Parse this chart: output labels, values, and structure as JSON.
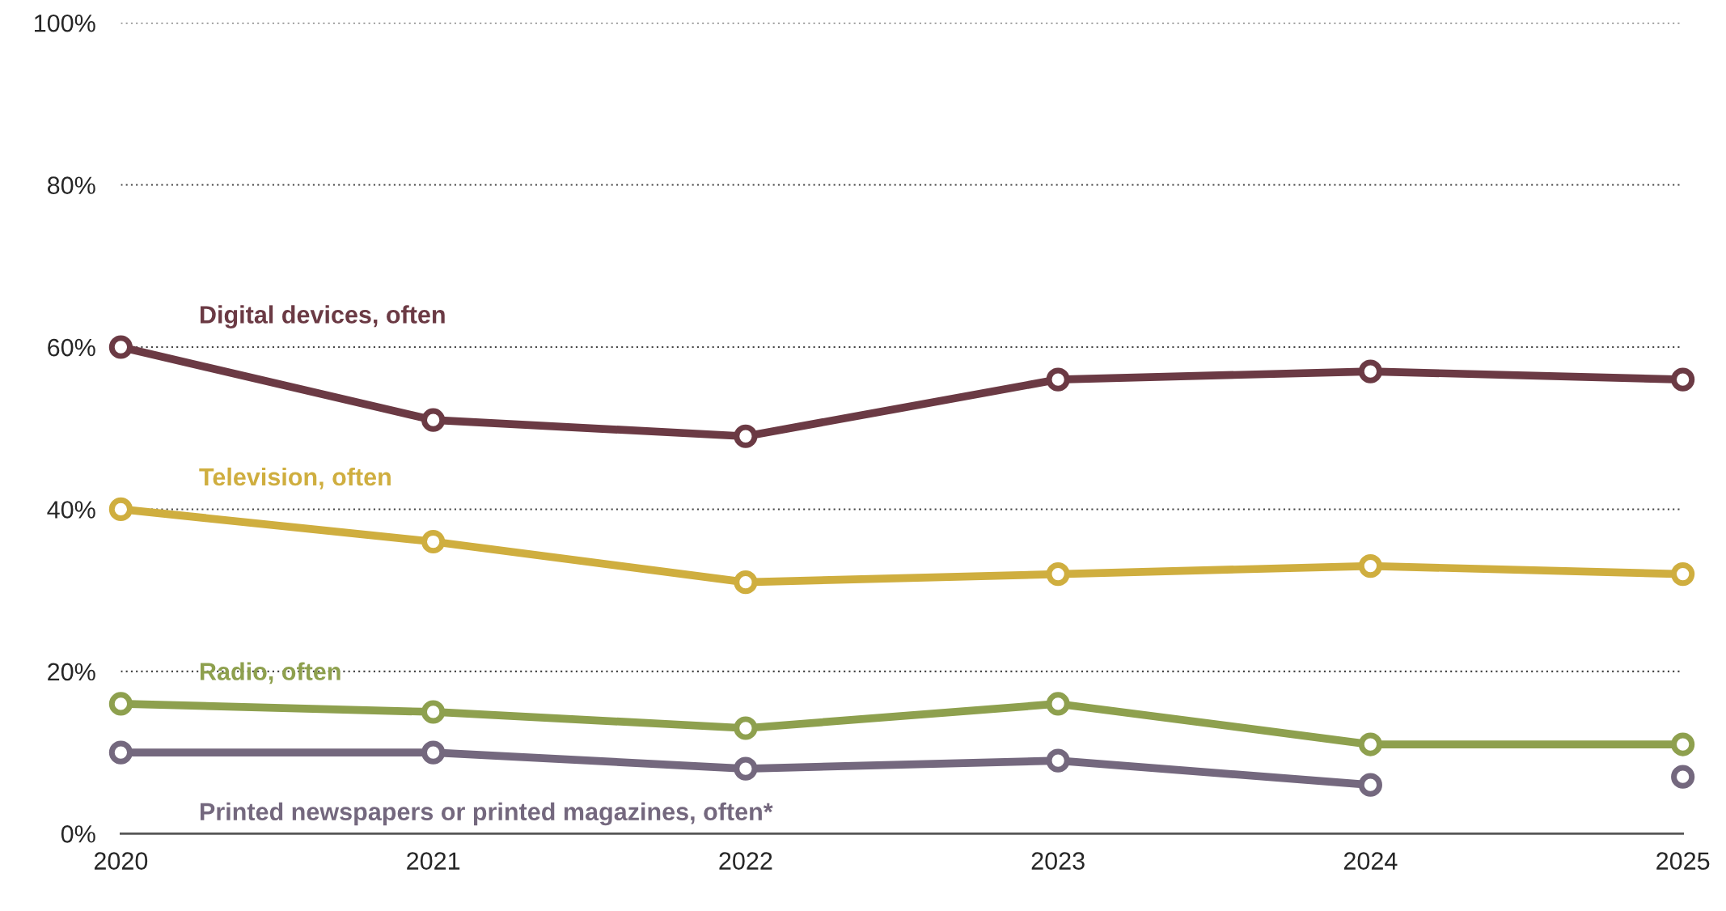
{
  "chart_data": {
    "type": "line",
    "x": [
      2020,
      2021,
      2022,
      2023,
      2024,
      2025
    ],
    "series": [
      {
        "name": "Digital devices, often",
        "color": "#6b3a44",
        "values": [
          60,
          51,
          49,
          56,
          57,
          56
        ]
      },
      {
        "name": "Television, often",
        "color": "#cfae3f",
        "values": [
          40,
          36,
          31,
          32,
          33,
          32
        ]
      },
      {
        "name": "Radio, often",
        "color": "#8ea04e",
        "values": [
          16,
          15,
          13,
          16,
          11,
          11
        ]
      },
      {
        "name": "Printed newspapers or printed magazines, often*",
        "color": "#74687e",
        "values": [
          10,
          10,
          8,
          9,
          6,
          null
        ]
      },
      {
        "type": "scatter",
        "color": "#74687e",
        "values": [
          null,
          null,
          null,
          null,
          null,
          7
        ]
      }
    ],
    "xlim": [
      2020,
      2025
    ],
    "xticks": [
      2020,
      2021,
      2022,
      2023,
      2024,
      2025
    ],
    "ylim": [
      0,
      100
    ],
    "yticks": [
      {
        "value": 0,
        "label": "0%"
      },
      {
        "value": 20,
        "label": "20%"
      },
      {
        "value": 40,
        "label": "40%"
      },
      {
        "value": 60,
        "label": "60%"
      },
      {
        "value": 80,
        "label": "80%"
      },
      {
        "value": 100,
        "label": "100%"
      }
    ],
    "grid": "y",
    "marker": "circle",
    "line_style": "solid",
    "legend": false
  }
}
